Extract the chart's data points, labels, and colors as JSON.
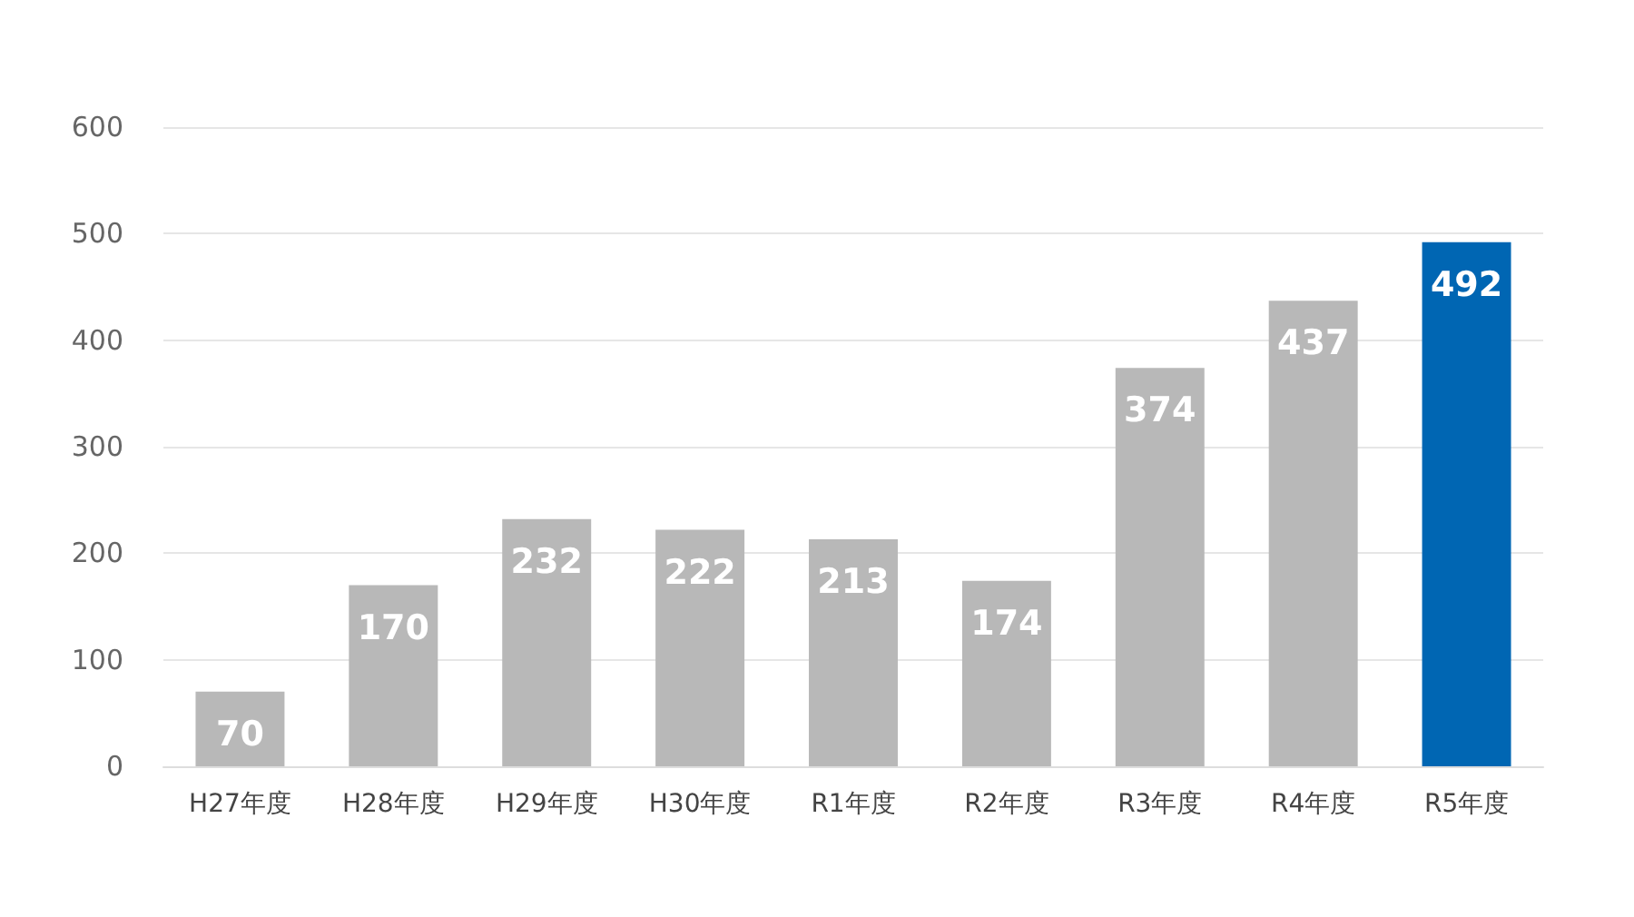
{
  "chart_data": {
    "type": "bar",
    "categories": [
      "H27年度",
      "H28年度",
      "H29年度",
      "H30年度",
      "R1年度",
      "R2年度",
      "R3年度",
      "R4年度",
      "R5年度"
    ],
    "values": [
      70,
      170,
      232,
      222,
      213,
      174,
      374,
      437,
      492
    ],
    "colors": [
      "#b8b8b8",
      "#b8b8b8",
      "#b8b8b8",
      "#b8b8b8",
      "#b8b8b8",
      "#b8b8b8",
      "#b8b8b8",
      "#b8b8b8",
      "#0066b3"
    ],
    "ylim": [
      0,
      600
    ],
    "yticks": [
      0,
      100,
      200,
      300,
      400,
      500,
      600
    ],
    "grid": "y",
    "data_labels": true
  }
}
